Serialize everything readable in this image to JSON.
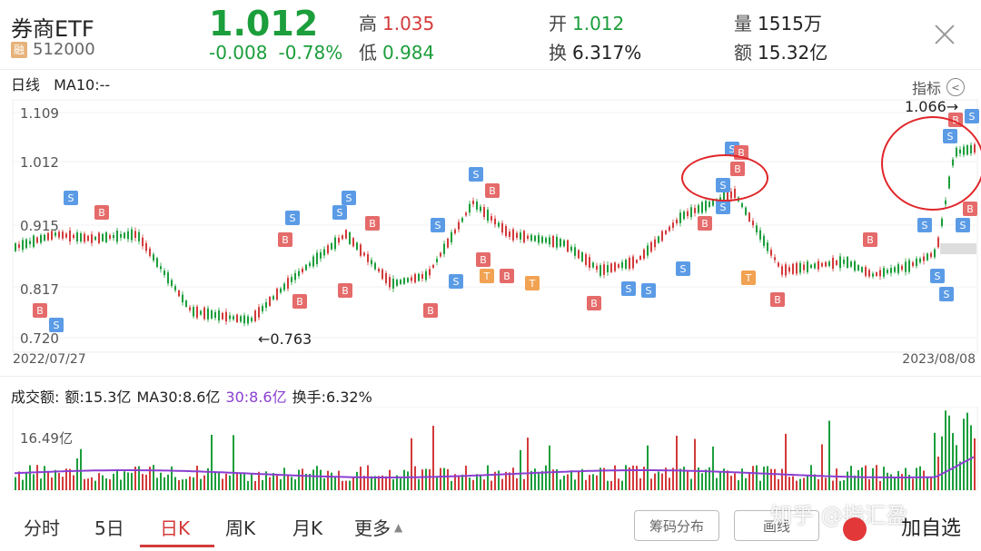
{
  "header": {
    "title": "券商ETF",
    "rong_badge": "融",
    "code": "512000",
    "price": "1.012",
    "change": "-0.008",
    "change_pct": "-0.78%",
    "high_label": "高",
    "high": "1.035",
    "low_label": "低",
    "low": "0.984",
    "open_label": "开",
    "open": "1.012",
    "turnover_label": "换",
    "turnover": "6.317%",
    "volume_label": "量",
    "volume": "1515万",
    "amount_label": "额",
    "amount": "15.32亿"
  },
  "chart_bar": {
    "period": "日线",
    "ma": "MA10:--",
    "indicator": "指标"
  },
  "price_chart": {
    "y_ticks": [
      "1.109",
      "1.012",
      "0.915",
      "0.817",
      "0.720"
    ],
    "start_date": "2022/07/27",
    "end_date": "2023/08/08",
    "low_annotation": "←0.763",
    "high_annotation": "1.066→"
  },
  "volume_chart": {
    "label": "成交额:",
    "amount": "额:15.3亿",
    "ma30": "MA30:8.6亿",
    "ma30b": "30:8.6亿",
    "turnover": "换手:6.32%",
    "scale": "16.49亿"
  },
  "tabs": [
    "分时",
    "5日",
    "日K",
    "周K",
    "月K",
    "更多"
  ],
  "buttons": {
    "chip": "筹码分布",
    "draw": "画线",
    "add": "加自选"
  },
  "watermark": "知乎 @指汇盈",
  "colors": {
    "up": "#d33a3a",
    "down": "#1b9e3b",
    "ma": "#8a3fd1"
  }
}
